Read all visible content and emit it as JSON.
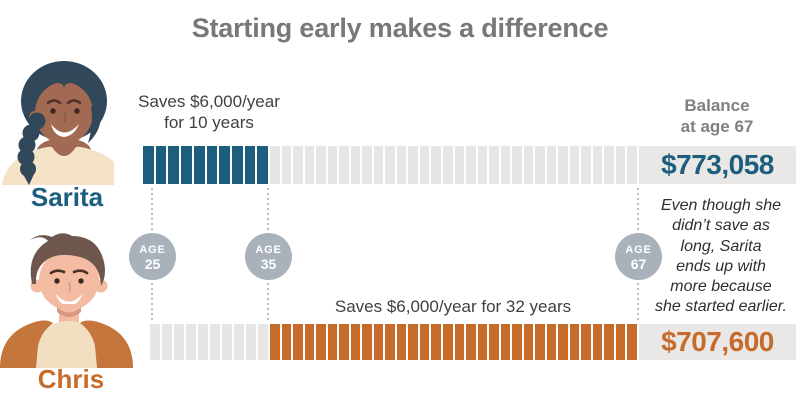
{
  "title": "Starting early makes a difference",
  "colors": {
    "teal": "#1d5e7e",
    "orange": "#c76b2a",
    "segment_gray": "#e7e6e5",
    "box_gray": "#e9e8e7",
    "circle_gray": "#a9b1ba",
    "title_gray": "#77787b",
    "header_gray": "#7f8083",
    "note_gray": "#3f4042"
  },
  "sarita": {
    "name": "Sarita",
    "save_note_line1": "Saves $6,000/year",
    "save_note_line2": "for 10 years",
    "bar": {
      "saving_segments": 10,
      "non_saving_segments": 32
    },
    "balance": "$773,058"
  },
  "chris": {
    "name": "Chris",
    "save_note": "Saves $6,000/year for 32 years",
    "bar": {
      "non_saving_segments": 10,
      "saving_segments": 32
    },
    "balance": "$707,600"
  },
  "balance_header": {
    "line1": "Balance",
    "line2": "at age 67"
  },
  "age_markers": [
    {
      "label": "AGE",
      "value": "25"
    },
    {
      "label": "AGE",
      "value": "35"
    },
    {
      "label": "AGE",
      "value": "67"
    }
  ],
  "annotation": {
    "text": "Even though she didn’t save as long, Sarita ends up with more because she started earlier.",
    "lines": [
      "Even though she",
      "didn’t save as",
      "long, Sarita",
      "ends up with",
      "more because",
      "she started earlier."
    ]
  },
  "chart_data": {
    "type": "bar",
    "title": "Starting early makes a difference",
    "xlabel": "age",
    "x_range": [
      25,
      67
    ],
    "age_markers": [
      25,
      35,
      67
    ],
    "series": [
      {
        "name": "Sarita",
        "annual_savings": "$6,000/year",
        "years_saving": 10,
        "saving_age_range": [
          25,
          35
        ],
        "balance_at_67": 773058,
        "balance_label": "$773,058",
        "color": "#1d5e7e"
      },
      {
        "name": "Chris",
        "annual_savings": "$6,000/year",
        "years_saving": 32,
        "saving_age_range": [
          35,
          67
        ],
        "balance_at_67": 707600,
        "balance_label": "$707,600",
        "color": "#c76b2a"
      }
    ],
    "annotation": "Even though she didn’t save as long, Sarita ends up with more because she started earlier.",
    "legend_position": "none",
    "grid": false
  }
}
